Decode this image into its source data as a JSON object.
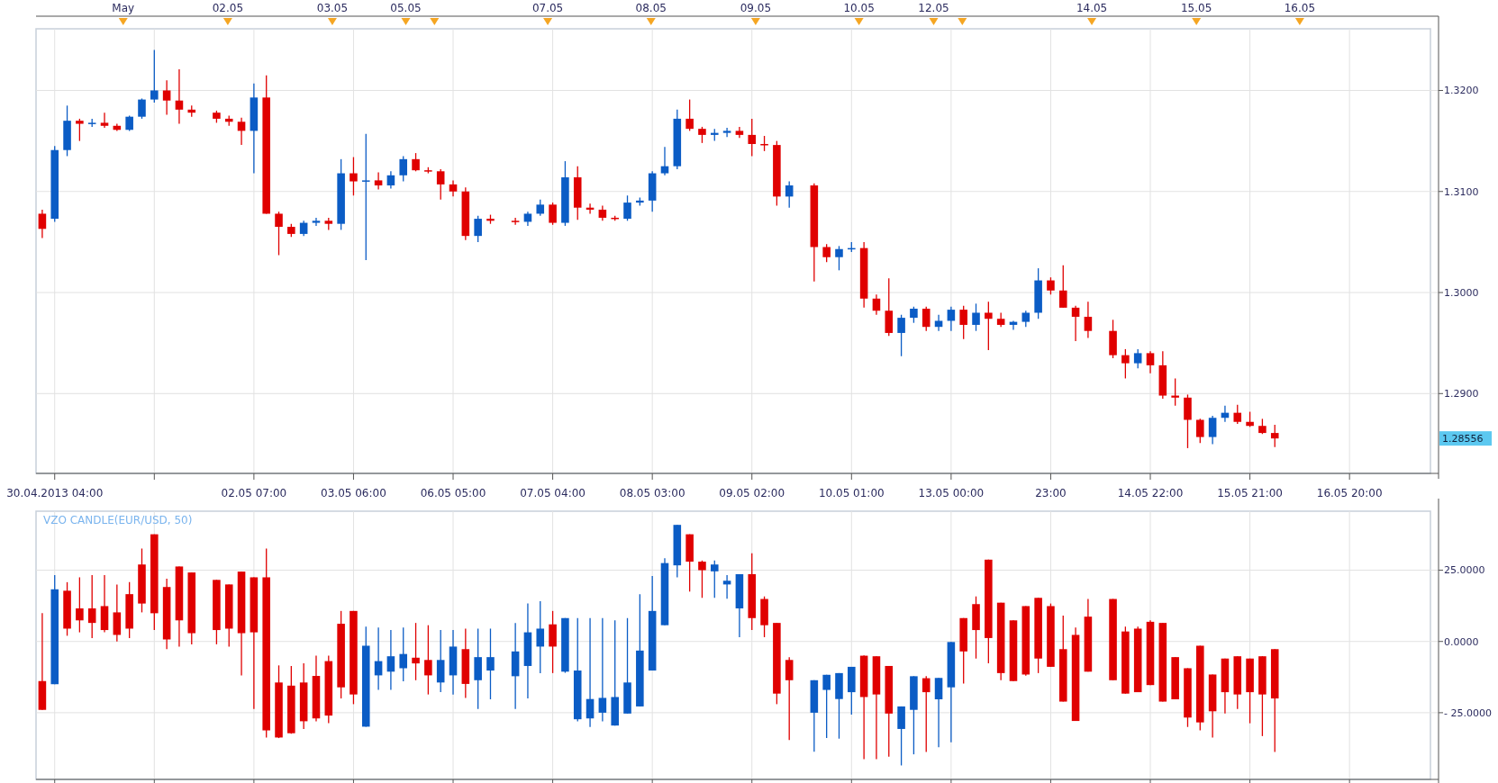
{
  "chart_data": [
    {
      "type": "candlestick",
      "categories": [
        null,
        "30.04.2013 04:00",
        null,
        null,
        null,
        null,
        null,
        null,
        null,
        null,
        null,
        null,
        null,
        null,
        null,
        null,
        null,
        "02.05 07:00",
        null,
        null,
        null,
        null,
        null,
        null,
        null,
        "03.05 06:00",
        null,
        null,
        null,
        null,
        null,
        null,
        null,
        "06.05 05:00",
        null,
        null,
        null,
        null,
        null,
        null,
        null,
        "07.05 04:00",
        null,
        null,
        null,
        null,
        null,
        null,
        null,
        "08.05 03:00",
        null,
        null,
        null,
        null,
        null,
        null,
        null,
        "09.05 02:00",
        null,
        null,
        null,
        null,
        null,
        null,
        null,
        "10.05 01:00",
        null,
        null,
        null,
        null,
        null,
        null,
        null,
        "13.05 00:00",
        null,
        null,
        null,
        null,
        null,
        null,
        null,
        "23:00",
        null,
        null,
        null,
        null,
        null,
        null,
        null,
        "14.05 22:00",
        null,
        null,
        null,
        null,
        null,
        null,
        null,
        "15.05 21:00",
        null,
        null,
        null,
        null,
        null,
        null,
        null,
        "16.05 20:00",
        null,
        null,
        null,
        null,
        null,
        null
      ],
      "ohlc": [
        [
          1.3078,
          1.3082,
          1.3054,
          1.3063
        ],
        [
          1.3073,
          1.3145,
          1.307,
          1.3141
        ],
        [
          1.3141,
          1.3185,
          1.3135,
          1.317
        ],
        [
          1.317,
          1.3172,
          1.315,
          1.3167
        ],
        [
          1.3167,
          1.3172,
          1.3164,
          1.3168
        ],
        [
          1.3168,
          1.3178,
          1.3163,
          1.3165
        ],
        [
          1.3165,
          1.3167,
          1.316,
          1.3161
        ],
        [
          1.3161,
          1.3175,
          1.316,
          1.3174
        ],
        [
          1.3174,
          1.3192,
          1.3172,
          1.3191
        ],
        [
          1.3191,
          1.324,
          1.3188,
          1.32
        ],
        [
          1.32,
          1.321,
          1.3176,
          1.319
        ],
        [
          1.319,
          1.3221,
          1.3167,
          1.3181
        ],
        [
          1.3181,
          1.3185,
          1.3174,
          1.3178
        ],
        null,
        [
          1.3178,
          1.318,
          1.3168,
          1.3172
        ],
        [
          1.3172,
          1.3175,
          1.3165,
          1.3169
        ],
        [
          1.3169,
          1.3173,
          1.3146,
          1.316
        ],
        [
          1.316,
          1.3207,
          1.3118,
          1.3193
        ],
        [
          1.3193,
          1.3215,
          1.3078,
          1.3078
        ],
        [
          1.3078,
          1.308,
          1.3037,
          1.3065
        ],
        [
          1.3065,
          1.3068,
          1.3055,
          1.3058
        ],
        [
          1.3058,
          1.3071,
          1.3056,
          1.3069
        ],
        [
          1.3069,
          1.3074,
          1.3066,
          1.3071
        ],
        [
          1.3071,
          1.3074,
          1.3062,
          1.3068
        ],
        [
          1.3068,
          1.3132,
          1.3062,
          1.3118
        ],
        [
          1.3118,
          1.3134,
          1.3096,
          1.311
        ],
        [
          1.311,
          1.3157,
          1.3032,
          1.3111
        ],
        [
          1.3111,
          1.3119,
          1.3102,
          1.3106
        ],
        [
          1.3106,
          1.312,
          1.3103,
          1.3116
        ],
        [
          1.3116,
          1.3135,
          1.311,
          1.3132
        ],
        [
          1.3132,
          1.3138,
          1.312,
          1.3121
        ],
        [
          1.3121,
          1.3124,
          1.3118,
          1.312
        ],
        [
          1.312,
          1.3122,
          1.3092,
          1.3107
        ],
        [
          1.3107,
          1.3111,
          1.3095,
          1.31
        ],
        [
          1.31,
          1.3104,
          1.3052,
          1.3056
        ],
        [
          1.3056,
          1.3076,
          1.305,
          1.3073
        ],
        [
          1.3073,
          1.3077,
          1.3068,
          1.3071
        ],
        null,
        [
          1.3071,
          1.3074,
          1.3067,
          1.307
        ],
        [
          1.307,
          1.308,
          1.3066,
          1.3078
        ],
        [
          1.3078,
          1.3092,
          1.3076,
          1.3087
        ],
        [
          1.3087,
          1.3089,
          1.3067,
          1.3069
        ],
        [
          1.3069,
          1.313,
          1.3066,
          1.3114
        ],
        [
          1.3114,
          1.3125,
          1.3072,
          1.3084
        ],
        [
          1.3084,
          1.3088,
          1.3078,
          1.3082
        ],
        [
          1.3082,
          1.3086,
          1.3071,
          1.3074
        ],
        [
          1.3074,
          1.3076,
          1.3071,
          1.3073
        ],
        [
          1.3073,
          1.3096,
          1.3071,
          1.3089
        ],
        [
          1.3089,
          1.3094,
          1.3086,
          1.3091
        ],
        [
          1.3091,
          1.312,
          1.308,
          1.3118
        ],
        [
          1.3118,
          1.3144,
          1.3116,
          1.3125
        ],
        [
          1.3125,
          1.3181,
          1.3122,
          1.3172
        ],
        [
          1.3172,
          1.3191,
          1.316,
          1.3162
        ],
        [
          1.3162,
          1.3164,
          1.3148,
          1.3156
        ],
        [
          1.3156,
          1.3162,
          1.315,
          1.3158
        ],
        [
          1.3158,
          1.3163,
          1.3154,
          1.316
        ],
        [
          1.316,
          1.3164,
          1.3153,
          1.3156
        ],
        [
          1.3156,
          1.3172,
          1.3135,
          1.3147
        ],
        [
          1.3147,
          1.3155,
          1.314,
          1.3146
        ],
        [
          1.3146,
          1.315,
          1.3086,
          1.3095
        ],
        [
          1.3095,
          1.311,
          1.3084,
          1.3106
        ],
        null,
        [
          1.3106,
          1.3108,
          1.3011,
          1.3045
        ],
        [
          1.3045,
          1.3048,
          1.303,
          1.3035
        ],
        [
          1.3035,
          1.3046,
          1.3022,
          1.3043
        ],
        [
          1.3043,
          1.305,
          1.304,
          1.3044
        ],
        [
          1.3044,
          1.305,
          1.2985,
          1.2994
        ],
        [
          1.2994,
          1.2998,
          1.2978,
          1.2982
        ],
        [
          1.2982,
          1.3014,
          1.2957,
          1.296
        ],
        [
          1.296,
          1.2978,
          1.2937,
          1.2975
        ],
        [
          1.2975,
          1.2986,
          1.297,
          1.2984
        ],
        [
          1.2984,
          1.2986,
          1.2962,
          1.2966
        ],
        [
          1.2966,
          1.2978,
          1.2962,
          1.2972
        ],
        [
          1.2972,
          1.2986,
          1.2962,
          1.2983
        ],
        [
          1.2983,
          1.2987,
          1.2954,
          1.2968
        ],
        [
          1.2968,
          1.2989,
          1.2962,
          1.298
        ],
        [
          1.298,
          1.2991,
          1.2943,
          1.2974
        ],
        [
          1.2974,
          1.298,
          1.2966,
          1.2968
        ],
        [
          1.2968,
          1.2972,
          1.2963,
          1.2971
        ],
        [
          1.2971,
          1.2982,
          1.2966,
          1.298
        ],
        [
          1.298,
          1.3024,
          1.2974,
          1.3012
        ],
        [
          1.3012,
          1.3015,
          1.2998,
          1.3002
        ],
        [
          1.3002,
          1.3027,
          1.2985,
          1.2985
        ],
        [
          1.2985,
          1.2987,
          1.2952,
          1.2976
        ],
        [
          1.2976,
          1.2991,
          1.2955,
          1.2962
        ],
        null,
        [
          1.2962,
          1.2973,
          1.2935,
          1.2938
        ],
        [
          1.2938,
          1.2944,
          1.2915,
          1.293
        ],
        [
          1.293,
          1.2944,
          1.2925,
          1.294
        ],
        [
          1.294,
          1.2942,
          1.292,
          1.2928
        ],
        [
          1.2928,
          1.2942,
          1.2895,
          1.2898
        ],
        [
          1.2898,
          1.2915,
          1.2888,
          1.2896
        ],
        [
          1.2896,
          1.2899,
          1.2846,
          1.2874
        ],
        [
          1.2874,
          1.2875,
          1.2851,
          1.2857
        ],
        [
          1.2857,
          1.2878,
          1.285,
          1.2876
        ],
        [
          1.2876,
          1.2888,
          1.2872,
          1.2881
        ],
        [
          1.2881,
          1.2889,
          1.287,
          1.2872
        ],
        [
          1.2872,
          1.2882,
          1.2867,
          1.2868
        ],
        [
          1.2868,
          1.2875,
          1.286,
          1.2861
        ],
        [
          1.2861,
          1.2869,
          1.2847,
          1.28556
        ],
        null,
        null,
        null,
        null,
        null,
        null,
        null,
        null,
        null,
        null,
        null,
        null
      ],
      "colors": [
        "#e00000",
        "#0b5cc5",
        "#0b5cc5",
        "#e00000",
        "#0b5cc5",
        "#e00000",
        "#e00000",
        "#0b5cc5",
        "#0b5cc5",
        "#0b5cc5",
        "#e00000",
        "#e00000",
        "#e00000",
        null,
        "#e00000",
        "#e00000",
        "#e00000",
        "#0b5cc5",
        "#e00000",
        "#e00000",
        "#e00000",
        "#0b5cc5",
        "#0b5cc5",
        "#e00000",
        "#0b5cc5",
        "#e00000",
        "#0b5cc5",
        "#e00000",
        "#0b5cc5",
        "#0b5cc5",
        "#e00000",
        "#e00000",
        "#e00000",
        "#e00000",
        "#e00000",
        "#0b5cc5",
        "#e00000",
        null,
        "#e00000",
        "#0b5cc5",
        "#0b5cc5",
        "#e00000",
        "#0b5cc5",
        "#e00000",
        "#e00000",
        "#e00000",
        "#e00000",
        "#0b5cc5",
        "#0b5cc5",
        "#0b5cc5",
        "#0b5cc5",
        "#0b5cc5",
        "#e00000",
        "#e00000",
        "#0b5cc5",
        "#0b5cc5",
        "#e00000",
        "#e00000",
        "#e00000",
        "#e00000",
        "#0b5cc5",
        null,
        "#e00000",
        "#e00000",
        "#0b5cc5",
        "#0b5cc5",
        "#e00000",
        "#e00000",
        "#e00000",
        "#0b5cc5",
        "#0b5cc5",
        "#e00000",
        "#0b5cc5",
        "#0b5cc5",
        "#e00000",
        "#0b5cc5",
        "#e00000",
        "#e00000",
        "#0b5cc5",
        "#0b5cc5",
        "#0b5cc5",
        "#e00000",
        "#e00000",
        "#e00000",
        "#e00000",
        null,
        "#e00000",
        "#e00000",
        "#0b5cc5",
        "#e00000",
        "#e00000",
        "#e00000",
        "#e00000",
        "#e00000",
        "#0b5cc5",
        "#0b5cc5",
        "#e00000",
        "#e00000",
        "#e00000",
        "#e00000",
        null,
        null,
        null,
        null,
        null,
        null,
        null,
        null,
        null,
        null,
        null,
        null
      ],
      "ylim": [
        1.2821,
        1.3261
      ],
      "yticks": [
        {
          "value": 1.29,
          "label": "1.2900"
        },
        {
          "value": 1.3,
          "label": "1.3000"
        },
        {
          "value": 1.31,
          "label": "1.3100"
        },
        {
          "value": 1.32,
          "label": "1.3200"
        }
      ],
      "annotations": [
        "May",
        "02.05",
        "03.05",
        "05.05",
        "07.05",
        "08.05",
        "09.05",
        "10.05",
        "12.05",
        "14.05",
        "15.05",
        "16.05",
        "1.28556"
      ],
      "grid": true
    },
    {
      "type": "candlestick",
      "title": "VZO CANDLE(EUR/USD, 50)",
      "categories": [
        null,
        null,
        null,
        null,
        null,
        null,
        null,
        null,
        null,
        null,
        null,
        null,
        null,
        null,
        null,
        null,
        null,
        null,
        null,
        null,
        null,
        null,
        null,
        null,
        null,
        null,
        null,
        null,
        null,
        null,
        null,
        null,
        null,
        null,
        null,
        null,
        null,
        null,
        null,
        null,
        null,
        null,
        null,
        null,
        null,
        null,
        null,
        null,
        null,
        null,
        null,
        null,
        null,
        null,
        null,
        null,
        null,
        null,
        null,
        null,
        null,
        null,
        null,
        null,
        null,
        null,
        null,
        null,
        null,
        null,
        null,
        null,
        null,
        null,
        null,
        null,
        null,
        null,
        null,
        null,
        null,
        null,
        null,
        null,
        null,
        null,
        null,
        null,
        null,
        null,
        null,
        null,
        null,
        null,
        null,
        null,
        null,
        null,
        null,
        null,
        null,
        null,
        null,
        null,
        null,
        null,
        null,
        null,
        null,
        null,
        null,
        null
      ],
      "ohlc": [
        [
          -13.9,
          9.9,
          -24,
          -24
        ],
        [
          -15,
          23.3,
          -15,
          18.3
        ],
        [
          17.8,
          20.8,
          2,
          4.5
        ],
        [
          11.6,
          22.5,
          3.2,
          7.4
        ],
        [
          11.6,
          23.3,
          1.2,
          6.5
        ],
        [
          12.4,
          23.3,
          3.2,
          4
        ],
        [
          10.2,
          20,
          0,
          2.3
        ],
        [
          16.6,
          20.8,
          1.2,
          4.5
        ],
        [
          27,
          32.6,
          10.2,
          13.3
        ],
        [
          37.6,
          37.6,
          4,
          9.9
        ],
        [
          19.1,
          22,
          -2.7,
          0.7
        ],
        [
          26.3,
          26.3,
          -1.8,
          7.4
        ],
        [
          24.2,
          24.2,
          -1,
          2.9
        ],
        null,
        [
          21.6,
          21.6,
          -1,
          4
        ],
        [
          20,
          20,
          -1.8,
          4.5
        ],
        [
          24.5,
          24.5,
          -11.9,
          2.9
        ],
        [
          22.5,
          22.5,
          -23.7,
          3.2
        ],
        [
          22.5,
          32.6,
          -33.7,
          -31.2
        ],
        [
          -14.4,
          -8.4,
          -33.9,
          -33.7
        ],
        [
          -15.5,
          -8.6,
          -32.4,
          -32.2
        ],
        [
          -14.4,
          -7.7,
          -30.7,
          -28
        ],
        [
          -12.1,
          -5,
          -28,
          -27
        ],
        [
          -6.9,
          -5,
          -28.7,
          -26
        ],
        [
          6.2,
          10.7,
          -20,
          -16.1
        ],
        [
          10.7,
          10.7,
          -22,
          -18.6
        ],
        [
          -29.9,
          5.2,
          -29.9,
          -1.5
        ],
        [
          -11.9,
          4.9,
          -17,
          -6.9
        ],
        [
          -10.6,
          4,
          -17,
          -5.2
        ],
        [
          -9.4,
          4.9,
          -14,
          -4.4
        ],
        [
          -5.7,
          6.5,
          -13.6,
          -7.7
        ],
        [
          -6.5,
          5.7,
          -18.6,
          -11.9
        ],
        [
          -14.4,
          4,
          -17.8,
          -6.5
        ],
        [
          -11.9,
          4,
          -18.6,
          -1.8
        ],
        [
          -2.7,
          4.5,
          -19.8,
          -14.9
        ],
        [
          -13.6,
          4.5,
          -23.7,
          -5.5
        ],
        [
          -10.2,
          4.5,
          -20.3,
          -5.5
        ],
        null,
        [
          -12.2,
          6.5,
          -23.7,
          -3.5
        ],
        [
          -8.6,
          13.3,
          -20,
          3.2
        ],
        [
          -1.8,
          14.1,
          -11.1,
          4.5
        ],
        [
          6,
          10.7,
          -11.1,
          -1.8
        ],
        [
          -10.6,
          8.2,
          -11,
          8.2
        ],
        [
          -27.3,
          8.2,
          -28,
          -10.2
        ],
        [
          -27,
          8.2,
          -30,
          -20.2
        ],
        [
          -25,
          8.2,
          -28,
          -19.8
        ],
        [
          -29.5,
          7.4,
          -29.5,
          -19.5
        ],
        [
          -25.3,
          8.2,
          -25.3,
          -14.4
        ],
        [
          -22.8,
          16.6,
          -22.8,
          -3.2
        ],
        [
          -10.2,
          23,
          -10.2,
          10.7
        ],
        [
          5.7,
          29.2,
          5.7,
          27.5
        ],
        [
          26.7,
          40.9,
          22.5,
          40.9
        ],
        [
          37.6,
          37.6,
          17.5,
          28
        ],
        [
          28,
          28.4,
          15.3,
          25
        ],
        [
          24.6,
          28.4,
          15.3,
          27
        ],
        [
          20,
          23.3,
          15,
          21.3
        ],
        [
          11.6,
          23.6,
          1.5,
          23.6
        ],
        [
          23.6,
          30.9,
          4,
          8.2
        ],
        [
          14.9,
          15.8,
          1.5,
          5.7
        ],
        [
          6.5,
          6.5,
          -22,
          -18.3
        ],
        [
          -6.5,
          -5.5,
          -34.6,
          -13.6
        ],
        null,
        [
          -25,
          -13.6,
          -38.7,
          -13.6
        ],
        [
          -17,
          -11.7,
          -33.9,
          -11.7
        ],
        [
          -20.2,
          -11.1,
          -34.1,
          -11.1
        ],
        [
          -17.8,
          -8.9,
          -25.7,
          -8.9
        ],
        [
          -5,
          -4.9,
          -41.3,
          -19.5
        ],
        [
          -5.2,
          -5.2,
          -41.3,
          -18.6
        ],
        [
          -8.6,
          -8.6,
          -40.4,
          -25.3
        ],
        [
          -30.7,
          -22.8,
          -43.5,
          -22.8
        ],
        [
          -24,
          -12.2,
          -39.6,
          -12.2
        ],
        [
          -12.9,
          -12.2,
          -38.8,
          -17.8
        ],
        [
          -20.3,
          -12.8,
          -37.1,
          -12.8
        ],
        [
          -16.1,
          -0.2,
          -35.4,
          -0.2
        ],
        [
          8.2,
          8.2,
          -14.8,
          -3.5
        ],
        [
          13.1,
          15.8,
          -6,
          4
        ],
        [
          28.7,
          28.7,
          -7.7,
          1.2
        ],
        [
          13.6,
          13.6,
          -13.6,
          -11.1
        ],
        [
          7.4,
          7.4,
          -13.9,
          -13.9
        ],
        [
          12.4,
          12.4,
          -12,
          -11.6
        ],
        [
          15.3,
          15.3,
          -11.1,
          -6
        ],
        [
          12.4,
          13.3,
          -8.9,
          -8.9
        ],
        [
          -2.7,
          9.1,
          -21.1,
          -21.1
        ],
        [
          2.3,
          4.9,
          -27.9,
          -27.9
        ],
        [
          8.7,
          14.9,
          -10.6,
          -10.6
        ],
        null,
        [
          14.9,
          14.9,
          -13.6,
          -13.6
        ],
        [
          3.5,
          5.2,
          -18.3,
          -18.3
        ],
        [
          4.5,
          5.2,
          -17.8,
          -17.8
        ],
        [
          6.9,
          7.4,
          -15.3,
          -15.3
        ],
        [
          6.5,
          6.5,
          -21.1,
          -21.1
        ],
        [
          -5.5,
          -5.5,
          -20.3,
          -20.3
        ],
        [
          -9.4,
          -9.4,
          -30,
          -26.7
        ],
        [
          -1.5,
          -1.5,
          -31.2,
          -28.4
        ],
        [
          -11.6,
          -11.6,
          -33.7,
          -24.5
        ],
        [
          -6,
          -6,
          -25.3,
          -17.8
        ],
        [
          -5.2,
          -5.2,
          -23.7,
          -18.6
        ],
        [
          -6,
          -6,
          -28.7,
          -17.8
        ],
        [
          -5.2,
          -5.2,
          -33.2,
          -18.6
        ],
        [
          -2.7,
          -2.7,
          -38.8,
          -20
        ],
        null,
        null,
        null,
        null,
        null,
        null,
        null,
        null,
        null,
        null,
        null,
        null
      ],
      "colors": [
        "#e00000",
        "#0b5cc5",
        "#e00000",
        "#e00000",
        "#e00000",
        "#e00000",
        "#e00000",
        "#e00000",
        "#e00000",
        "#e00000",
        "#e00000",
        "#e00000",
        "#e00000",
        null,
        "#e00000",
        "#e00000",
        "#e00000",
        "#e00000",
        "#e00000",
        "#e00000",
        "#e00000",
        "#e00000",
        "#e00000",
        "#e00000",
        "#e00000",
        "#e00000",
        "#0b5cc5",
        "#0b5cc5",
        "#0b5cc5",
        "#0b5cc5",
        "#e00000",
        "#e00000",
        "#0b5cc5",
        "#0b5cc5",
        "#e00000",
        "#0b5cc5",
        "#0b5cc5",
        null,
        "#0b5cc5",
        "#0b5cc5",
        "#0b5cc5",
        "#e00000",
        "#0b5cc5",
        "#0b5cc5",
        "#0b5cc5",
        "#0b5cc5",
        "#0b5cc5",
        "#0b5cc5",
        "#0b5cc5",
        "#0b5cc5",
        "#0b5cc5",
        "#0b5cc5",
        "#e00000",
        "#e00000",
        "#0b5cc5",
        "#0b5cc5",
        "#0b5cc5",
        "#e00000",
        "#e00000",
        "#e00000",
        "#e00000",
        null,
        "#0b5cc5",
        "#0b5cc5",
        "#0b5cc5",
        "#0b5cc5",
        "#e00000",
        "#e00000",
        "#e00000",
        "#0b5cc5",
        "#0b5cc5",
        "#e00000",
        "#0b5cc5",
        "#0b5cc5",
        "#e00000",
        "#e00000",
        "#e00000",
        "#e00000",
        "#e00000",
        "#e00000",
        "#e00000",
        "#e00000",
        "#e00000",
        "#e00000",
        "#e00000",
        null,
        "#e00000",
        "#e00000",
        "#e00000",
        "#e00000",
        "#e00000",
        "#e00000",
        "#e00000",
        "#e00000",
        "#e00000",
        "#e00000",
        "#e00000",
        "#e00000",
        "#e00000",
        "#e00000",
        null,
        null,
        null,
        null,
        null,
        null,
        null,
        null,
        null,
        null,
        null,
        null
      ],
      "ylim": [
        -48.4,
        45.7
      ],
      "yticks": [
        {
          "value": -25,
          "label": "- 25.0000"
        },
        {
          "value": 0,
          "label": "0.0000"
        },
        {
          "value": 25,
          "label": "25.0000"
        }
      ],
      "tick_labels": "y",
      "grid": true
    }
  ]
}
